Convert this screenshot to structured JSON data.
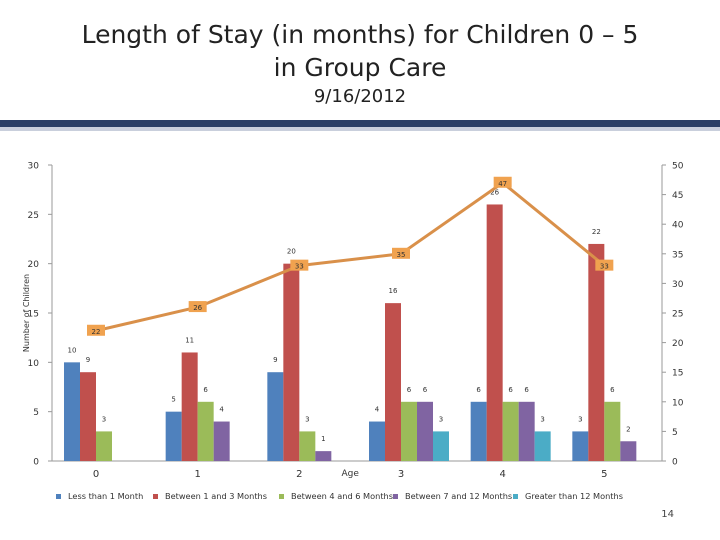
{
  "slide": {
    "title_line1": "Length of Stay (in months) for Children 0 – 5",
    "title_line2": "in Group Care",
    "date": "9/16/2012",
    "page_number": "14",
    "colors": {
      "band_dark": "#2b3f66",
      "band_light": "#c9cfdc"
    }
  },
  "chart_data": {
    "type": "bar",
    "title": "",
    "xlabel": "Age",
    "ylabel": "Number of Children",
    "categories": [
      "0",
      "1",
      "2",
      "3",
      "4",
      "5"
    ],
    "ylim": [
      0,
      30
    ],
    "yticks": [
      0,
      5,
      10,
      15,
      20,
      25,
      30
    ],
    "y2lim": [
      0,
      50
    ],
    "y2ticks": [
      0,
      5,
      10,
      15,
      20,
      25,
      30,
      35,
      40,
      45,
      50
    ],
    "grid": false,
    "legend": "bottom",
    "series": [
      {
        "name": "Less than 1 Month",
        "color": "#4f81bd",
        "values": [
          10,
          5,
          9,
          4,
          6,
          3
        ]
      },
      {
        "name": "Between 1 and 3 Months",
        "color": "#c0504d",
        "values": [
          9,
          11,
          20,
          16,
          26,
          22
        ]
      },
      {
        "name": "Between 4 and 6 Months",
        "color": "#9bbb59",
        "values": [
          3,
          6,
          3,
          6,
          6,
          6
        ]
      },
      {
        "name": "Between 7 and 12 Months",
        "color": "#8064a2",
        "values": [
          null,
          4,
          1,
          6,
          6,
          2
        ]
      },
      {
        "name": "Greater than 12 Months",
        "color": "#4bacc6",
        "values": [
          null,
          null,
          null,
          3,
          3,
          null
        ]
      }
    ],
    "total_line": {
      "color": "#d9904a",
      "axis": "right",
      "values": [
        22,
        26,
        33,
        35,
        47,
        33
      ]
    }
  }
}
